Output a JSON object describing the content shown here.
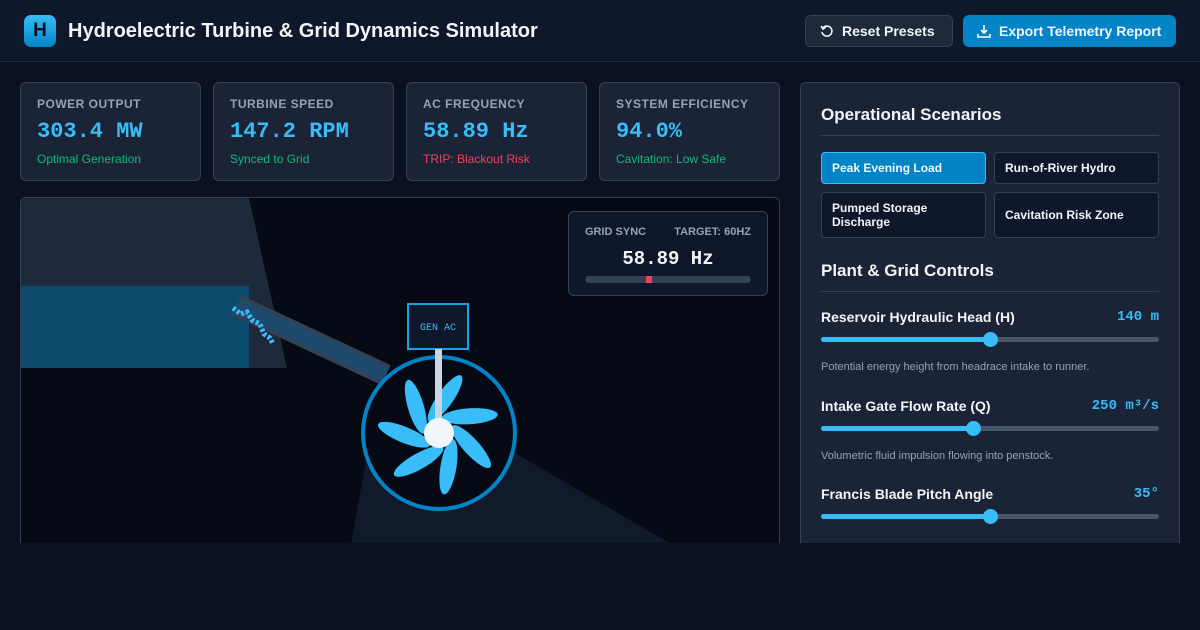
{
  "header": {
    "logo": "H",
    "title": "Hydroelectric Turbine & Grid Dynamics Simulator",
    "buttons": [
      "Reset Presets",
      "Export Telemetry Report"
    ]
  },
  "metrics": [
    {
      "label": "POWER OUTPUT",
      "value": "303.4 MW",
      "status": "Optimal Generation"
    },
    {
      "label": "TURBINE SPEED",
      "value": "147.2 RPM",
      "status": "Synced to Grid"
    },
    {
      "label": "AC FREQUENCY",
      "value": "58.89 Hz",
      "status": "TRIP: Blackout Risk"
    },
    {
      "label": "SYSTEM EFFICIENCY",
      "value": "94.0%",
      "status": "Cavitation: Low Safe"
    }
  ],
  "visual": {
    "generator_label": "GEN AC",
    "grid_sync": {
      "label": "GRID SYNC",
      "target": "TARGET: 60HZ",
      "value": "58.89 Hz"
    }
  },
  "panel": {
    "scenarios": {
      "title": "Operational Scenarios",
      "items": [
        "Peak Evening Load",
        "Run-of-River Hydro",
        "Pumped Storage Discharge",
        "Cavitation Risk Zone"
      ]
    },
    "controls": {
      "title": "Plant & Grid Controls",
      "sliders": [
        {
          "label": "Reservoir Hydraulic Head (H)",
          "value": "140 m",
          "description": "Potential energy height from headrace intake to runner."
        },
        {
          "label": "Intake Gate Flow Rate (Q)",
          "value": "250 m³/s",
          "description": "Volumetric fluid impulsion flowing into penstock."
        },
        {
          "label": "Francis Blade Pitch Angle",
          "value": "35°"
        }
      ]
    }
  }
}
